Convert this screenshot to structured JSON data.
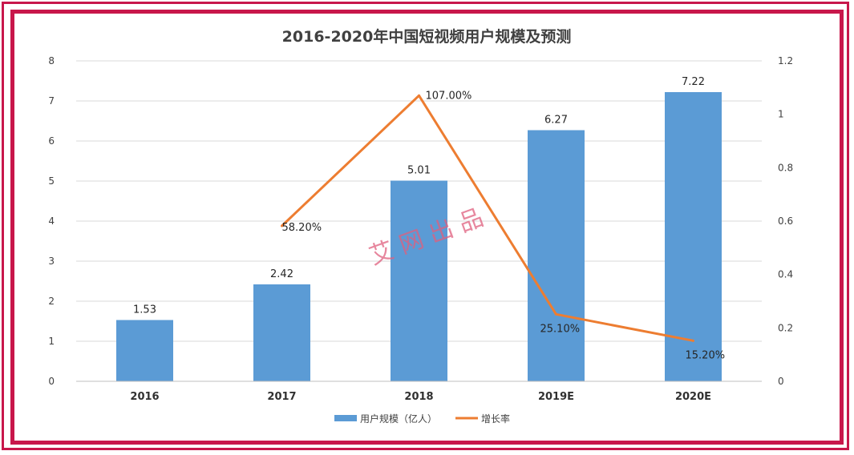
{
  "chart_data": {
    "type": "bar",
    "title": "2016-2020年中国短视频用户规模及预测",
    "categories": [
      "2016",
      "2017",
      "2018",
      "2019E",
      "2020E"
    ],
    "series": [
      {
        "name": "用户规模（亿人）",
        "type": "bar",
        "axis": "left",
        "values": [
          1.53,
          2.42,
          5.01,
          6.27,
          7.22
        ],
        "labels": [
          "1.53",
          "2.42",
          "5.01",
          "6.27",
          "7.22"
        ]
      },
      {
        "name": "增长率",
        "type": "line",
        "axis": "right",
        "values": [
          null,
          0.582,
          1.07,
          0.251,
          0.152
        ],
        "labels": [
          "",
          "58.20%",
          "107.00%",
          "25.10%",
          "15.20%"
        ]
      }
    ],
    "ylim_left": [
      0,
      8
    ],
    "yticks_left": [
      "0",
      "1",
      "2",
      "3",
      "4",
      "5",
      "6",
      "7",
      "8"
    ],
    "ylim_right": [
      0,
      1.2
    ],
    "yticks_right": [
      "0",
      "0.2",
      "0.4",
      "0.6",
      "0.8",
      "1",
      "1.2"
    ],
    "grid": true,
    "legend_position": "bottom",
    "colors": {
      "bar": "#5b9bd5",
      "line": "#ed7d31"
    },
    "watermark": "艾 网 出 品"
  },
  "frame_color": "#c8174b"
}
